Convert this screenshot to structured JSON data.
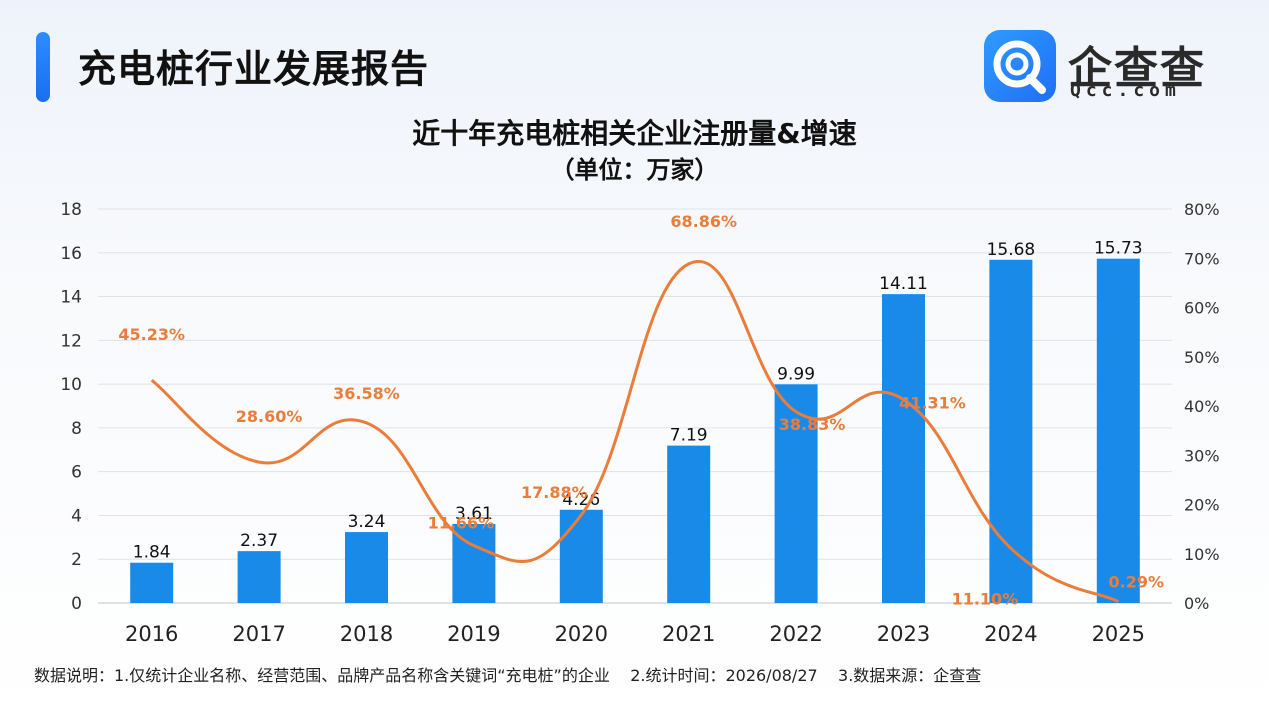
{
  "header": {
    "report_title": "充电桩行业发展报告",
    "logo_name": "企查查",
    "logo_domain": "Qcc.com"
  },
  "chart_data": {
    "type": "bar+line",
    "title": "近十年充电桩相关企业注册量&增速",
    "subtitle": "（单位：万家）",
    "categories": [
      "2016",
      "2017",
      "2018",
      "2019",
      "2020",
      "2021",
      "2022",
      "2023",
      "2024",
      "2025"
    ],
    "series": [
      {
        "kind": "bar",
        "axis": "left",
        "values": [
          1.84,
          2.37,
          3.24,
          3.61,
          4.26,
          7.19,
          9.99,
          14.11,
          15.68,
          15.73
        ],
        "labels": [
          "1.84",
          "2.37",
          "3.24",
          "3.61",
          "4.26",
          "7.19",
          "9.99",
          "14.11",
          "15.68",
          "15.73"
        ],
        "color": "#1a8ae8"
      },
      {
        "kind": "line",
        "axis": "right",
        "values": [
          45.23,
          28.6,
          36.58,
          11.66,
          17.88,
          68.86,
          38.83,
          41.31,
          11.1,
          0.29
        ],
        "labels": [
          "45.23%",
          "28.60%",
          "36.58%",
          "11.66%",
          "17.88%",
          "68.86%",
          "38.83%",
          "41.31%",
          "11.10%",
          "0.29%"
        ],
        "color": "#ea7d3a"
      }
    ],
    "y_left": {
      "min": 0,
      "max": 18,
      "step": 2,
      "ticks": [
        "0",
        "2",
        "4",
        "6",
        "8",
        "10",
        "12",
        "14",
        "16",
        "18"
      ]
    },
    "y_right": {
      "min": 0,
      "max": 80,
      "step": 10,
      "ticks": [
        "0%",
        "10%",
        "20%",
        "30%",
        "40%",
        "50%",
        "60%",
        "70%",
        "80%"
      ]
    },
    "grid": true,
    "legend": "none"
  },
  "footnote": "数据说明：1.仅统计企业名称、经营范围、品牌产品名称含关键词“充电桩”的企业    2.统计时间：2026/08/27    3.数据来源：企查查"
}
